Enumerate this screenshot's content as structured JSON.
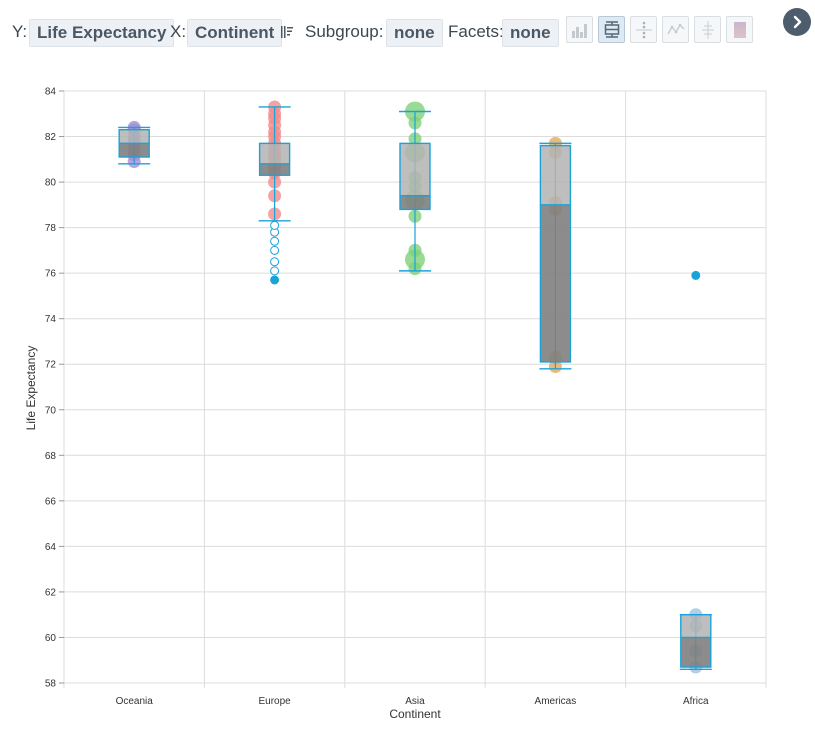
{
  "toolbar": {
    "y_label": "Y:",
    "y_value": "Life Expectancy",
    "x_label": "X:",
    "x_value": "Continent",
    "subgroup_label": "Subgroup:",
    "subgroup_value": "none",
    "facets_label": "Facets:",
    "facets_value": "none",
    "chart_types": [
      "bar-chart-icon",
      "box-plot-icon",
      "strip-plot-icon",
      "line-chart-icon",
      "violin-icon",
      "heatmap-icon"
    ],
    "active_chart_type": "box-plot-icon"
  },
  "chart_data": {
    "type": "box",
    "xlabel": "Continent",
    "ylabel": "Life Expectancy",
    "ylim": [
      58,
      84
    ],
    "yticks": [
      58,
      60,
      62,
      64,
      66,
      68,
      70,
      72,
      74,
      76,
      78,
      80,
      82,
      84
    ],
    "categories": [
      "Oceania",
      "Europe",
      "Asia",
      "Americas",
      "Africa"
    ],
    "grid": true,
    "colors": {
      "box_outline": "#1aa3d9",
      "box_fill_upper": "#b3b3b3",
      "box_fill_lower": "#808080",
      "outlier": "#1aa3d9",
      "gridline": "#dcdcdc"
    },
    "groups": [
      {
        "category": "Oceania",
        "color": "#a48fd6",
        "min": 80.8,
        "q1": 81.1,
        "median": 81.7,
        "q3": 82.3,
        "max": 82.4,
        "outliers": [],
        "points": [
          80.9,
          81.2,
          81.5,
          81.8,
          82.0,
          82.3,
          82.4
        ]
      },
      {
        "category": "Europe",
        "color": "#f28b8b",
        "min": 78.3,
        "q1": 80.3,
        "median": 80.8,
        "q3": 81.7,
        "max": 83.3,
        "outliers": [
          75.7,
          76.1,
          76.5,
          77.0,
          77.4,
          77.8,
          78.1
        ],
        "points": [
          78.6,
          79.4,
          80.0,
          80.4,
          80.7,
          81.0,
          81.2,
          81.4,
          81.7,
          82.0,
          82.2,
          82.5,
          82.8,
          83.0,
          83.3
        ]
      },
      {
        "category": "Asia",
        "color": "#7fd17a",
        "min": 76.1,
        "q1": 78.8,
        "median": 79.4,
        "q3": 81.7,
        "max": 83.1,
        "outliers": [],
        "points": [
          76.2,
          76.6,
          77.0,
          78.5,
          79.2,
          79.8,
          80.2,
          81.3,
          81.9,
          82.6,
          83.1
        ]
      },
      {
        "category": "Americas",
        "color": "#e7a65b",
        "min": 71.8,
        "q1": 72.1,
        "median": 79.0,
        "q3": 81.6,
        "max": 81.7,
        "outliers": [],
        "points": [
          71.9,
          72.3,
          78.8,
          79.1,
          81.3,
          81.7
        ]
      },
      {
        "category": "Africa",
        "color": "#9ec3e6",
        "min": 58.6,
        "q1": 58.7,
        "median": 60.0,
        "q3": 61.0,
        "max": 61.0,
        "outliers": [
          75.9
        ],
        "points": [
          58.7,
          59.4,
          60.5,
          61.0
        ]
      }
    ]
  }
}
